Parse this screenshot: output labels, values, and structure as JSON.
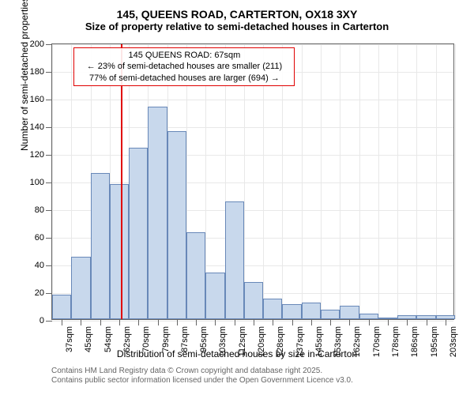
{
  "chart": {
    "type": "histogram",
    "title": "145, QUEENS ROAD, CARTERTON, OX18 3XY",
    "subtitle": "Size of property relative to semi-detached houses in Carterton",
    "x_axis_title": "Distribution of semi-detached houses by size in Carterton",
    "y_axis_title": "Number of semi-detached properties",
    "ylim": [
      0,
      200
    ],
    "ytick_step": 20,
    "y_ticks": [
      0,
      20,
      40,
      60,
      80,
      100,
      120,
      140,
      160,
      180,
      200
    ],
    "x_labels": [
      "37sqm",
      "45sqm",
      "54sqm",
      "62sqm",
      "70sqm",
      "79sqm",
      "87sqm",
      "95sqm",
      "103sqm",
      "112sqm",
      "120sqm",
      "128sqm",
      "137sqm",
      "145sqm",
      "153sqm",
      "162sqm",
      "170sqm",
      "178sqm",
      "186sqm",
      "195sqm",
      "203sqm"
    ],
    "values": [
      18,
      45,
      106,
      98,
      124,
      154,
      136,
      63,
      34,
      85,
      27,
      15,
      11,
      12,
      7,
      10,
      4,
      0,
      3,
      3,
      3
    ],
    "bar_fill": "#c8d8ec",
    "bar_border": "#6888b8",
    "background_color": "#ffffff",
    "grid_color": "#e8e8e8",
    "axis_color": "#666666",
    "refline_color": "#e00000",
    "refline_x_index": 3.6,
    "callout": {
      "line1": "145 QUEENS ROAD: 67sqm",
      "line2": "← 23% of semi-detached houses are smaller (211)",
      "line3": "77% of semi-detached houses are larger (694) →"
    },
    "footnote_line1": "Contains HM Land Registry data © Crown copyright and database right 2025.",
    "footnote_line2": "Contains public sector information licensed under the Open Government Licence v3.0."
  }
}
